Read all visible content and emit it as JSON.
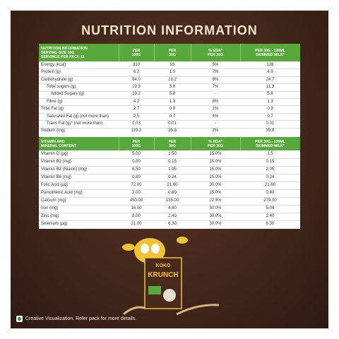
{
  "title": "NUTRITION INFORMATION",
  "table1": {
    "header_label": [
      "NUTRITION INFORMATION",
      "SERVING SIZE 30G",
      "SERVINGS PER PACK 11"
    ],
    "columns": [
      [
        "PER",
        "100G"
      ],
      [
        "PER",
        "30G"
      ],
      [
        "% GDA*",
        "PER 30G"
      ],
      [
        "PER 30G - 120ML",
        "SKIMMED MILK*"
      ]
    ],
    "rows": [
      [
        "Energy (kcal)",
        "310",
        "93",
        "5%",
        "128"
      ],
      [
        "Protein (g)",
        "6.2",
        "1.9",
        "7%",
        "4.9"
      ],
      [
        "Carbohydrate (g)",
        "64.0",
        "19.2",
        "8%",
        "24.7"
      ],
      [
        "Total sugars (g)",
        "19.3",
        "5.8",
        "7%",
        "11.3"
      ],
      [
        "Added Sugars (g)",
        "19.2",
        "5.8",
        "-",
        "5.8"
      ],
      [
        "Fibre (g)",
        "4.2",
        "1.3",
        "8%",
        "1.3"
      ],
      [
        "Total Fat (g)",
        "2.7",
        "0.8",
        "1%",
        "0.9"
      ],
      [
        "Saturated Fat (g) (not more than)",
        "2.5",
        "0.7",
        "4%",
        "0.7"
      ],
      [
        "Trans Fat (g)* (not more than)",
        "0.03",
        "0.01",
        "-",
        "0.01"
      ],
      [
        "Sodium (mg)",
        "119.2",
        "35.8",
        "2%",
        "35.8"
      ]
    ]
  },
  "table2": {
    "header_label": [
      "VITAMIN AND",
      "MINERAL CONTENT"
    ],
    "columns": [
      [
        "PER",
        "100G"
      ],
      [
        "PER",
        "30G"
      ],
      [
        "% RDA*",
        "PER 30G"
      ],
      [
        "PER 30G - 120ML",
        "SKIMMED MILK*"
      ]
    ],
    "rows": [
      [
        "Vitamin D (µg)",
        "5.00",
        "1.50",
        "15.0%",
        "1.5"
      ],
      [
        "Vitamin B2 (mg)",
        "0.50",
        "0.15",
        "15.0%",
        "0.15"
      ],
      [
        "Vitamin B3 (Niacin) (mg)",
        "6.50",
        "1.95",
        "15.0%",
        "2.05"
      ],
      [
        "Vitamin B6 (mg)",
        "0.80",
        "0.24",
        "15.0%",
        "0.24"
      ],
      [
        "Folic Acid (µg)",
        "72.00",
        "21.60",
        "30.0%",
        "21.60"
      ],
      [
        "Pantothenic Acid (mg)",
        "2.00",
        "0.60",
        "15.0%",
        "0.60"
      ],
      [
        "Calcium (mg)",
        "450.00",
        "135.00",
        "22.5%",
        "279.00"
      ],
      [
        "Iron (mg)",
        "16.00",
        "4.80",
        "30.0%",
        "5.04"
      ],
      [
        "Zinc (mg)",
        "8.00",
        "2.40",
        "30.0%",
        "2.40"
      ],
      [
        "Selenium (µg)",
        "21.00",
        "6.30",
        "30.0%",
        "6.30"
      ]
    ]
  },
  "product": [
    "KOKO",
    "KRUNCH"
  ],
  "footnote": "Creative Visualization. Refer pack for more details."
}
